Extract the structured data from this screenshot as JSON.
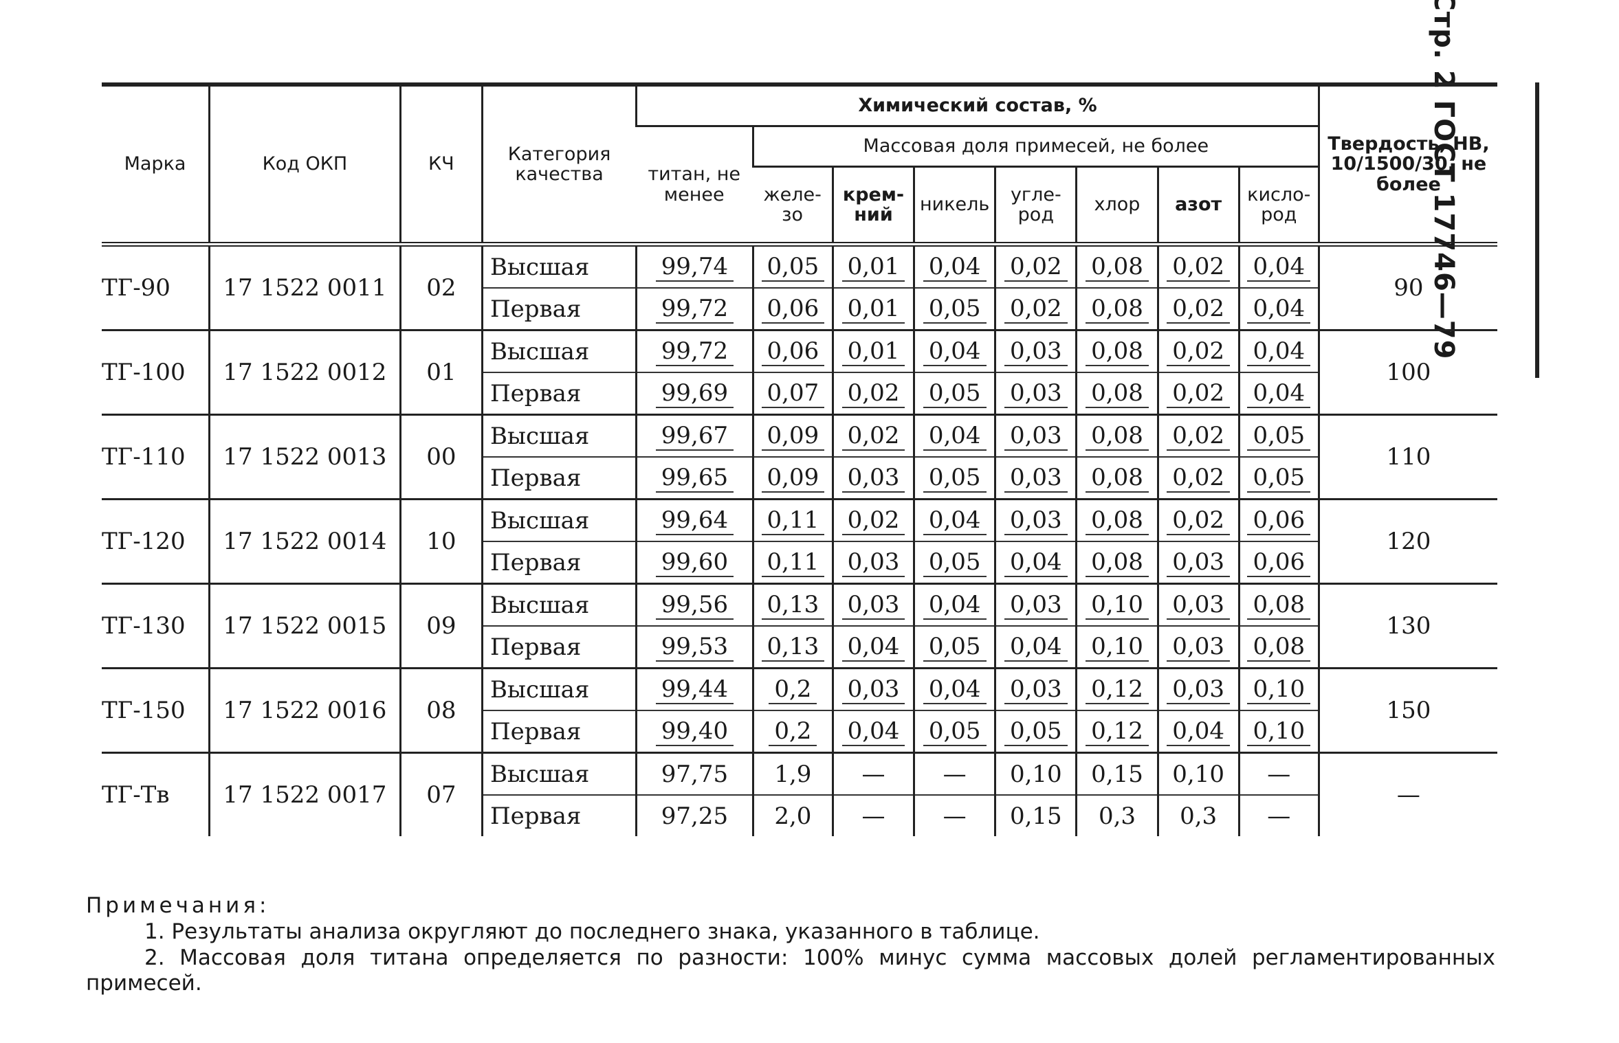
{
  "side_header": "Стр. 2 ГОСТ 17746—79",
  "table": {
    "headers": {
      "marka": "Марка",
      "kod_okp": "Код ОКП",
      "kch": "КЧ",
      "category": "Категория качества",
      "chem": "Химический состав, %",
      "titanium": "титан, не менее",
      "impurities": "Массовая доля примесей, не более",
      "iron": "желе-зо",
      "silicon": "крем-ний",
      "nickel": "никель",
      "carbon": "угле-род",
      "chlorine": "хлор",
      "nitrogen": "азот",
      "oxygen": "кисло-род",
      "hardness": "Твердость, НВ, 10/1500/30, не более"
    },
    "groups": [
      {
        "marka": "ТГ-90",
        "kod": "17 1522 0011",
        "kch": "02",
        "hardness": "90",
        "rows": [
          {
            "category": "Высшая",
            "ti": "99,74",
            "fe": "0,05",
            "si": "0,01",
            "ni": "0,04",
            "c": "0,02",
            "cl": "0,08",
            "n": "0,02",
            "o": "0,04"
          },
          {
            "category": "Первая",
            "ti": "99,72",
            "fe": "0,06",
            "si": "0,01",
            "ni": "0,05",
            "c": "0,02",
            "cl": "0,08",
            "n": "0,02",
            "o": "0,04"
          }
        ]
      },
      {
        "marka": "ТГ-100",
        "kod": "17 1522 0012",
        "kch": "01",
        "hardness": "100",
        "rows": [
          {
            "category": "Высшая",
            "ti": "99,72",
            "fe": "0,06",
            "si": "0,01",
            "ni": "0,04",
            "c": "0,03",
            "cl": "0,08",
            "n": "0,02",
            "o": "0,04"
          },
          {
            "category": "Первая",
            "ti": "99,69",
            "fe": "0,07",
            "si": "0,02",
            "ni": "0,05",
            "c": "0,03",
            "cl": "0,08",
            "n": "0,02",
            "o": "0,04"
          }
        ]
      },
      {
        "marka": "ТГ-110",
        "kod": "17 1522 0013",
        "kch": "00",
        "hardness": "110",
        "rows": [
          {
            "category": "Высшая",
            "ti": "99,67",
            "fe": "0,09",
            "si": "0,02",
            "ni": "0,04",
            "c": "0,03",
            "cl": "0,08",
            "n": "0,02",
            "o": "0,05"
          },
          {
            "category": "Первая",
            "ti": "99,65",
            "fe": "0,09",
            "si": "0,03",
            "ni": "0,05",
            "c": "0,03",
            "cl": "0,08",
            "n": "0,02",
            "o": "0,05"
          }
        ]
      },
      {
        "marka": "ТГ-120",
        "kod": "17 1522 0014",
        "kch": "10",
        "hardness": "120",
        "rows": [
          {
            "category": "Высшая",
            "ti": "99,64",
            "fe": "0,11",
            "si": "0,02",
            "ni": "0,04",
            "c": "0,03",
            "cl": "0,08",
            "n": "0,02",
            "o": "0,06"
          },
          {
            "category": "Первая",
            "ti": "99,60",
            "fe": "0,11",
            "si": "0,03",
            "ni": "0,05",
            "c": "0,04",
            "cl": "0,08",
            "n": "0,03",
            "o": "0,06"
          }
        ]
      },
      {
        "marka": "ТГ-130",
        "kod": "17 1522 0015",
        "kch": "09",
        "hardness": "130",
        "rows": [
          {
            "category": "Высшая",
            "ti": "99,56",
            "fe": "0,13",
            "si": "0,03",
            "ni": "0,04",
            "c": "0,03",
            "cl": "0,10",
            "n": "0,03",
            "o": "0,08"
          },
          {
            "category": "Первая",
            "ti": "99,53",
            "fe": "0,13",
            "si": "0,04",
            "ni": "0,05",
            "c": "0,04",
            "cl": "0,10",
            "n": "0,03",
            "o": "0,08"
          }
        ]
      },
      {
        "marka": "ТГ-150",
        "kod": "17 1522 0016",
        "kch": "08",
        "hardness": "150",
        "rows": [
          {
            "category": "Высшая",
            "ti": "99,44",
            "fe": "0,2",
            "si": "0,03",
            "ni": "0,04",
            "c": "0,03",
            "cl": "0,12",
            "n": "0,03",
            "o": "0,10"
          },
          {
            "category": "Первая",
            "ti": "99,40",
            "fe": "0,2",
            "si": "0,04",
            "ni": "0,05",
            "c": "0,05",
            "cl": "0,12",
            "n": "0,04",
            "o": "0,10"
          }
        ]
      },
      {
        "marka": "ТГ-Тв",
        "kod": "17 1522 0017",
        "kch": "07",
        "hardness": "—",
        "rows": [
          {
            "category": "Высшая",
            "ti": "97,75",
            "fe": "1,9",
            "si": "—",
            "ni": "—",
            "c": "0,10",
            "cl": "0,15",
            "n": "0,10",
            "o": "—"
          },
          {
            "category": "Первая",
            "ti": "97,25",
            "fe": "2,0",
            "si": "—",
            "ni": "—",
            "c": "0,15",
            "cl": "0,3",
            "n": "0,3",
            "o": "—"
          }
        ]
      }
    ]
  },
  "notes": {
    "title": "Примечания:",
    "items": [
      "1. Результаты анализа округляют до последнего знака, указанного в таблице.",
      "2. Массовая доля титана определяется по разности: 100% минус сумма массовых долей регламентированных примесей."
    ]
  }
}
